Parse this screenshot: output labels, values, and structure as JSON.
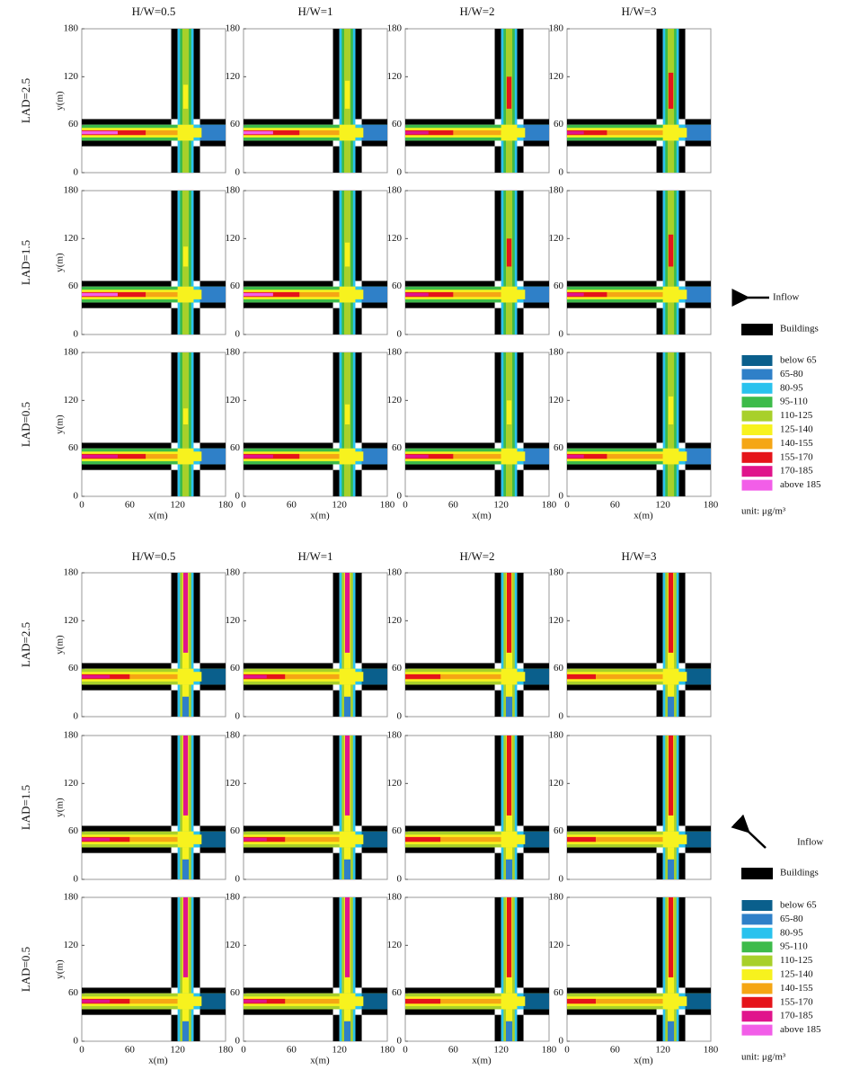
{
  "figures": [
    {
      "column_titles": [
        "H/W=0.5",
        "H/W=1",
        "H/W=2",
        "H/W=3"
      ],
      "row_labels": [
        "LAD=2.5",
        "LAD=1.5",
        "LAD=0.5"
      ],
      "y_label": "y(m)",
      "x_label": "x(m)",
      "ticks": [
        0,
        60,
        120,
        180
      ],
      "inflow": "Inflow",
      "buildings": "Buildings",
      "legend": [
        {
          "label": "below 65",
          "color": "#0a5f8c"
        },
        {
          "label": "65-80",
          "color": "#2f80c8"
        },
        {
          "label": "80-95",
          "color": "#29c2ee"
        },
        {
          "label": "95-110",
          "color": "#3dbb4a"
        },
        {
          "label": "110-125",
          "color": "#a8d02a"
        },
        {
          "label": "125-140",
          "color": "#f7f21e"
        },
        {
          "label": "140-155",
          "color": "#f5a614"
        },
        {
          "label": "155-170",
          "color": "#e5141a"
        },
        {
          "label": "170-185",
          "color": "#e0148c"
        },
        {
          "label": "above 185",
          "color": "#f25ee8"
        }
      ],
      "unit": "unit: μg/m³"
    },
    {
      "column_titles": [
        "H/W=0.5",
        "H/W=1",
        "H/W=2",
        "H/W=3"
      ],
      "row_labels": [
        "LAD=2.5",
        "LAD=1.5",
        "LAD=0.5"
      ],
      "y_label": "y(m)",
      "x_label": "x(m)",
      "ticks": [
        0,
        60,
        120,
        180
      ],
      "inflow": "Inflow",
      "buildings": "Buildings",
      "legend": [
        {
          "label": "below 65",
          "color": "#0a5f8c"
        },
        {
          "label": "65-80",
          "color": "#2f80c8"
        },
        {
          "label": "80-95",
          "color": "#29c2ee"
        },
        {
          "label": "95-110",
          "color": "#3dbb4a"
        },
        {
          "label": "110-125",
          "color": "#a8d02a"
        },
        {
          "label": "125-140",
          "color": "#f7f21e"
        },
        {
          "label": "140-155",
          "color": "#f5a614"
        },
        {
          "label": "155-170",
          "color": "#e5141a"
        },
        {
          "label": "170-185",
          "color": "#e0148c"
        },
        {
          "label": "above 185",
          "color": "#f25ee8"
        }
      ],
      "unit": "unit: μg/m³"
    }
  ]
}
